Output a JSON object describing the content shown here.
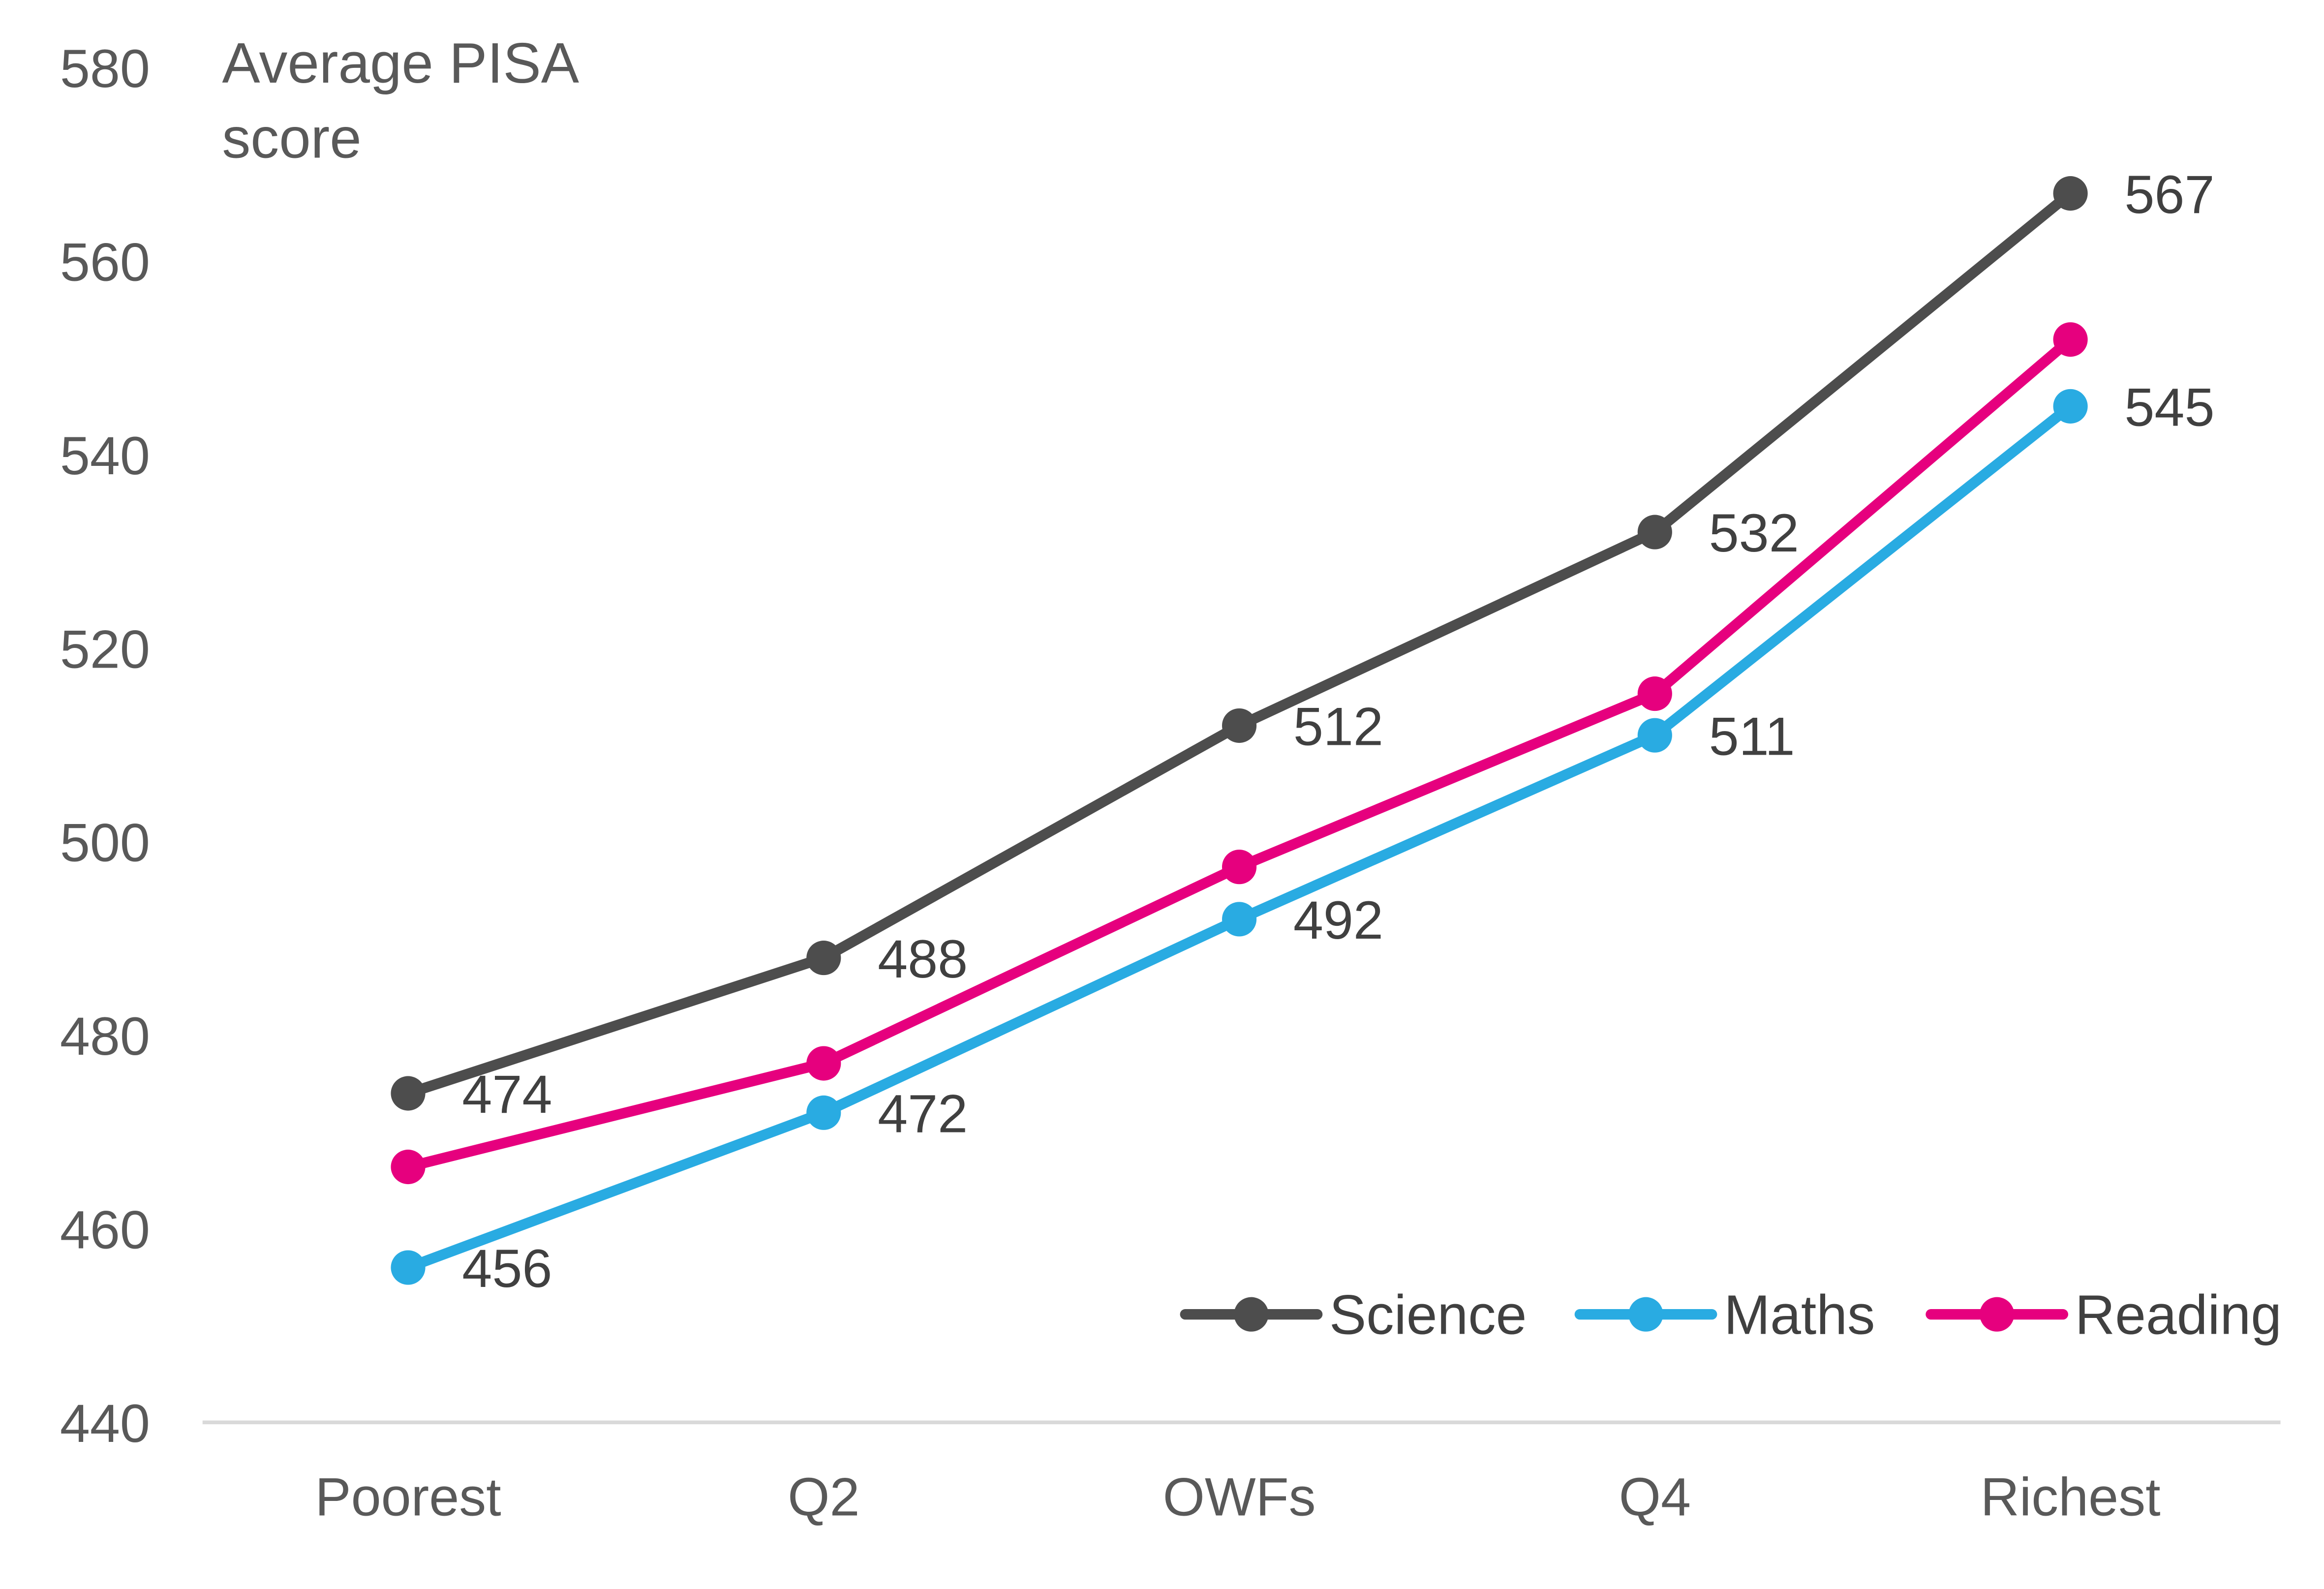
{
  "chart_data": {
    "type": "line",
    "title": "",
    "ylabel": "Average PISA score",
    "xlabel": "",
    "ylim": [
      440,
      580
    ],
    "yticks": [
      440,
      460,
      480,
      500,
      520,
      540,
      560,
      580
    ],
    "grid": false,
    "legend_position": "bottom-right",
    "categories": [
      "Poorest",
      "Q2",
      "OWFs",
      "Q4",
      "Richest"
    ],
    "series": [
      {
        "name": "Science",
        "color": "#4d4d4d",
        "values": [
          474,
          488,
          512,
          532,
          567
        ],
        "labels": [
          "474",
          "488",
          "512",
          "532",
          "567"
        ],
        "label_pos": "right"
      },
      {
        "name": "Maths",
        "color": "#29abe2",
        "values": [
          456,
          472,
          492,
          511,
          545
        ],
        "labels": [
          "456",
          "472",
          "492",
          "511",
          "545"
        ],
        "label_pos": "right"
      },
      {
        "name": "Reading",
        "color": "#e6007e",
        "values": [
          466.4,
          477.1,
          497.4,
          515.3,
          551.9
        ],
        "labels": null
      }
    ]
  }
}
